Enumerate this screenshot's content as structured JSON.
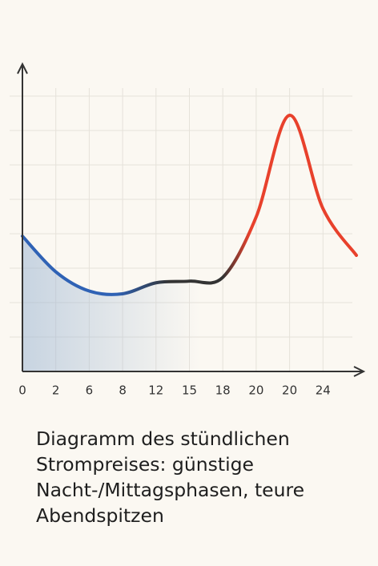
{
  "chart_data": {
    "type": "line",
    "categories": [
      "0",
      "2",
      "6",
      "8",
      "12",
      "15",
      "18",
      "20",
      "20",
      "24",
      null
    ],
    "values": [
      49,
      36,
      29,
      28,
      32,
      32.6,
      34,
      56,
      93,
      59,
      42
    ],
    "colors": [
      "#2f62b5",
      "#333333",
      "#e8412c"
    ],
    "area_color": "#9db6d3",
    "ylim": [
      0,
      100
    ],
    "grid": true,
    "caption": "Diagramm des stündlichen Strompreises: günstige Nacht-/Mittagsphasen, teure Abendspitzen"
  }
}
